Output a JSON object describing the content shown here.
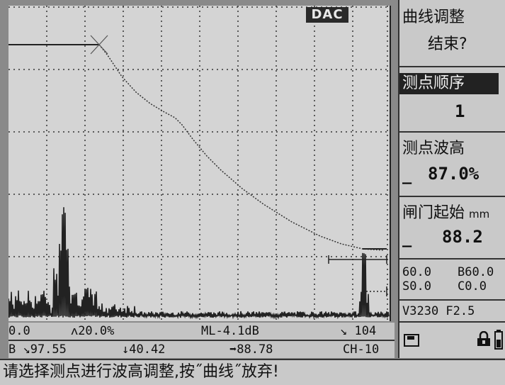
{
  "mode_badge": "DAC",
  "menu": {
    "item1_line1": "曲线调整",
    "item1_line2": "结束?",
    "item2_label": "测点顺序",
    "item2_value": "1",
    "item3_label": "测点波高",
    "item3_value": "87.0%",
    "item4_label": "闸门起始",
    "item4_unit": "mm",
    "item4_value": "88.2"
  },
  "params": {
    "row1_left": "60.0",
    "row1_right": "B60.0",
    "row2_left": "S0.0",
    "row2_right": "C0.0",
    "row3": "V3230 F2.5"
  },
  "status": {
    "r1_gain": "0.0",
    "r1_gate": "ᴧ20.0%",
    "r1_ml": "ML-4.1dB",
    "r1_peak": "↘ 104",
    "r2_b": "B ↘97.55",
    "r2_depth": "↓40.42",
    "r2_dist": "➡88.78",
    "r2_ch": "CH-10"
  },
  "prompt": "请选择测点进行波高调整,按˝曲线˝放弃!",
  "icons": [
    "save-icon",
    "lock-icon",
    "battery-icon"
  ]
}
